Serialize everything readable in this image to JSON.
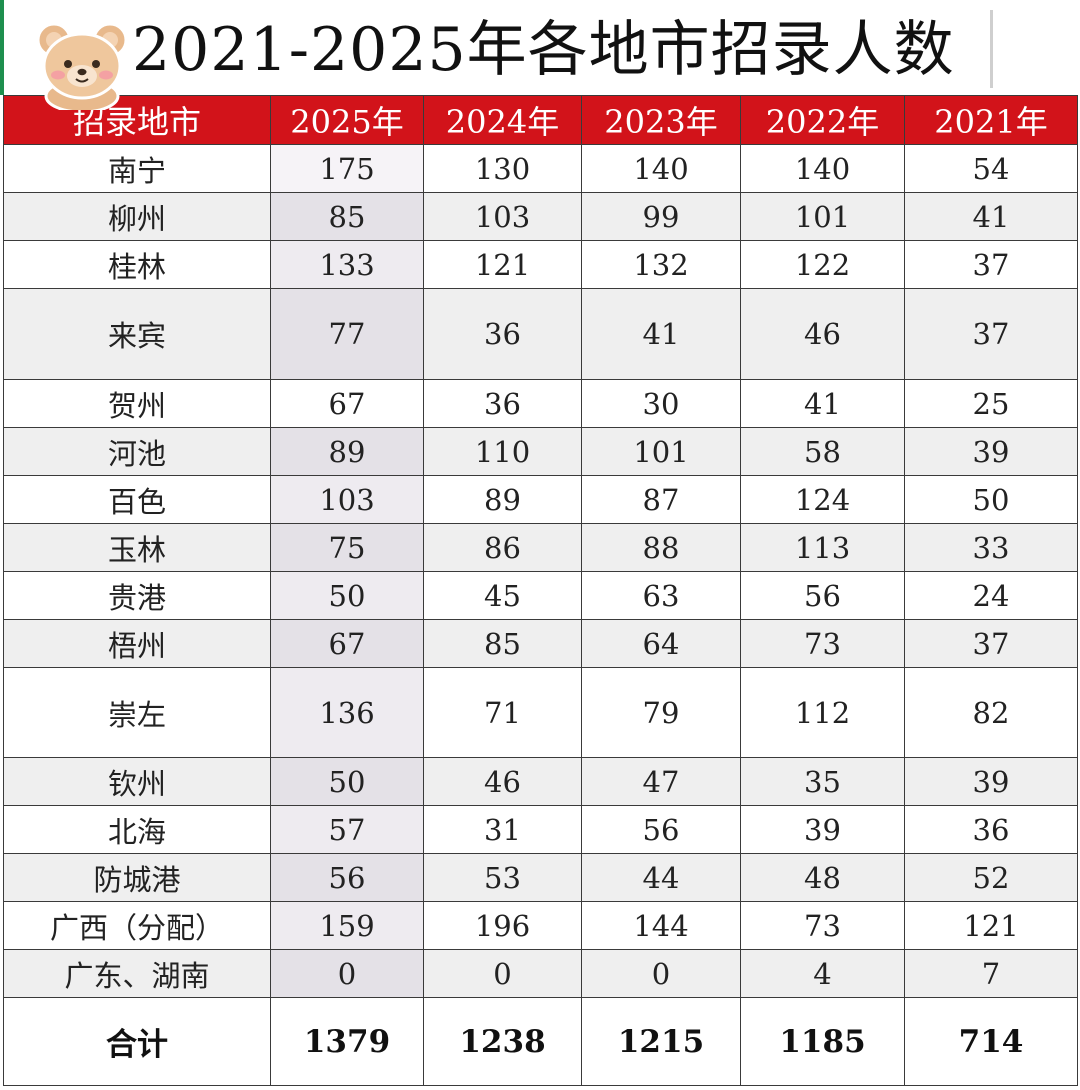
{
  "title": "2021-2025年各地市招录人数",
  "header": [
    "招录地市",
    "2025年",
    "2024年",
    "2023年",
    "2022年",
    "2021年"
  ],
  "rows": [
    {
      "city": "南宁",
      "values": [
        "175",
        "130",
        "140",
        "140",
        "54"
      ]
    },
    {
      "city": "柳州",
      "values": [
        "85",
        "103",
        "99",
        "101",
        "41"
      ]
    },
    {
      "city": "桂林",
      "values": [
        "133",
        "121",
        "132",
        "122",
        "37"
      ]
    },
    {
      "city": "来宾",
      "values": [
        "77",
        "36",
        "41",
        "46",
        "37"
      ]
    },
    {
      "city": "贺州",
      "values": [
        "67",
        "36",
        "30",
        "41",
        "25"
      ]
    },
    {
      "city": "河池",
      "values": [
        "89",
        "110",
        "101",
        "58",
        "39"
      ]
    },
    {
      "city": "百色",
      "values": [
        "103",
        "89",
        "87",
        "124",
        "50"
      ]
    },
    {
      "city": "玉林",
      "values": [
        "75",
        "86",
        "88",
        "113",
        "33"
      ]
    },
    {
      "city": "贵港",
      "values": [
        "50",
        "45",
        "63",
        "56",
        "24"
      ]
    },
    {
      "city": "梧州",
      "values": [
        "67",
        "85",
        "64",
        "73",
        "37"
      ]
    },
    {
      "city": "崇左",
      "values": [
        "136",
        "71",
        "79",
        "112",
        "82"
      ]
    },
    {
      "city": "钦州",
      "values": [
        "50",
        "46",
        "47",
        "35",
        "39"
      ]
    },
    {
      "city": "北海",
      "values": [
        "57",
        "31",
        "56",
        "39",
        "36"
      ]
    },
    {
      "city": "防城港",
      "values": [
        "56",
        "53",
        "44",
        "48",
        "52"
      ]
    },
    {
      "city": "广西（分配）",
      "values": [
        "159",
        "196",
        "144",
        "73",
        "121"
      ]
    },
    {
      "city": "广东、湖南",
      "values": [
        "0",
        "0",
        "0",
        "4",
        "7"
      ]
    }
  ],
  "total": {
    "label": "合计",
    "values": [
      "1379",
      "1238",
      "1215",
      "1185",
      "714"
    ]
  },
  "colors": {
    "header_bg": "#d2131a",
    "header_text": "#ffffff",
    "stripe": "#efefef",
    "highlight_col": "#eeebf0"
  },
  "icons": {
    "sticker": "teddy-bear-sticker"
  }
}
